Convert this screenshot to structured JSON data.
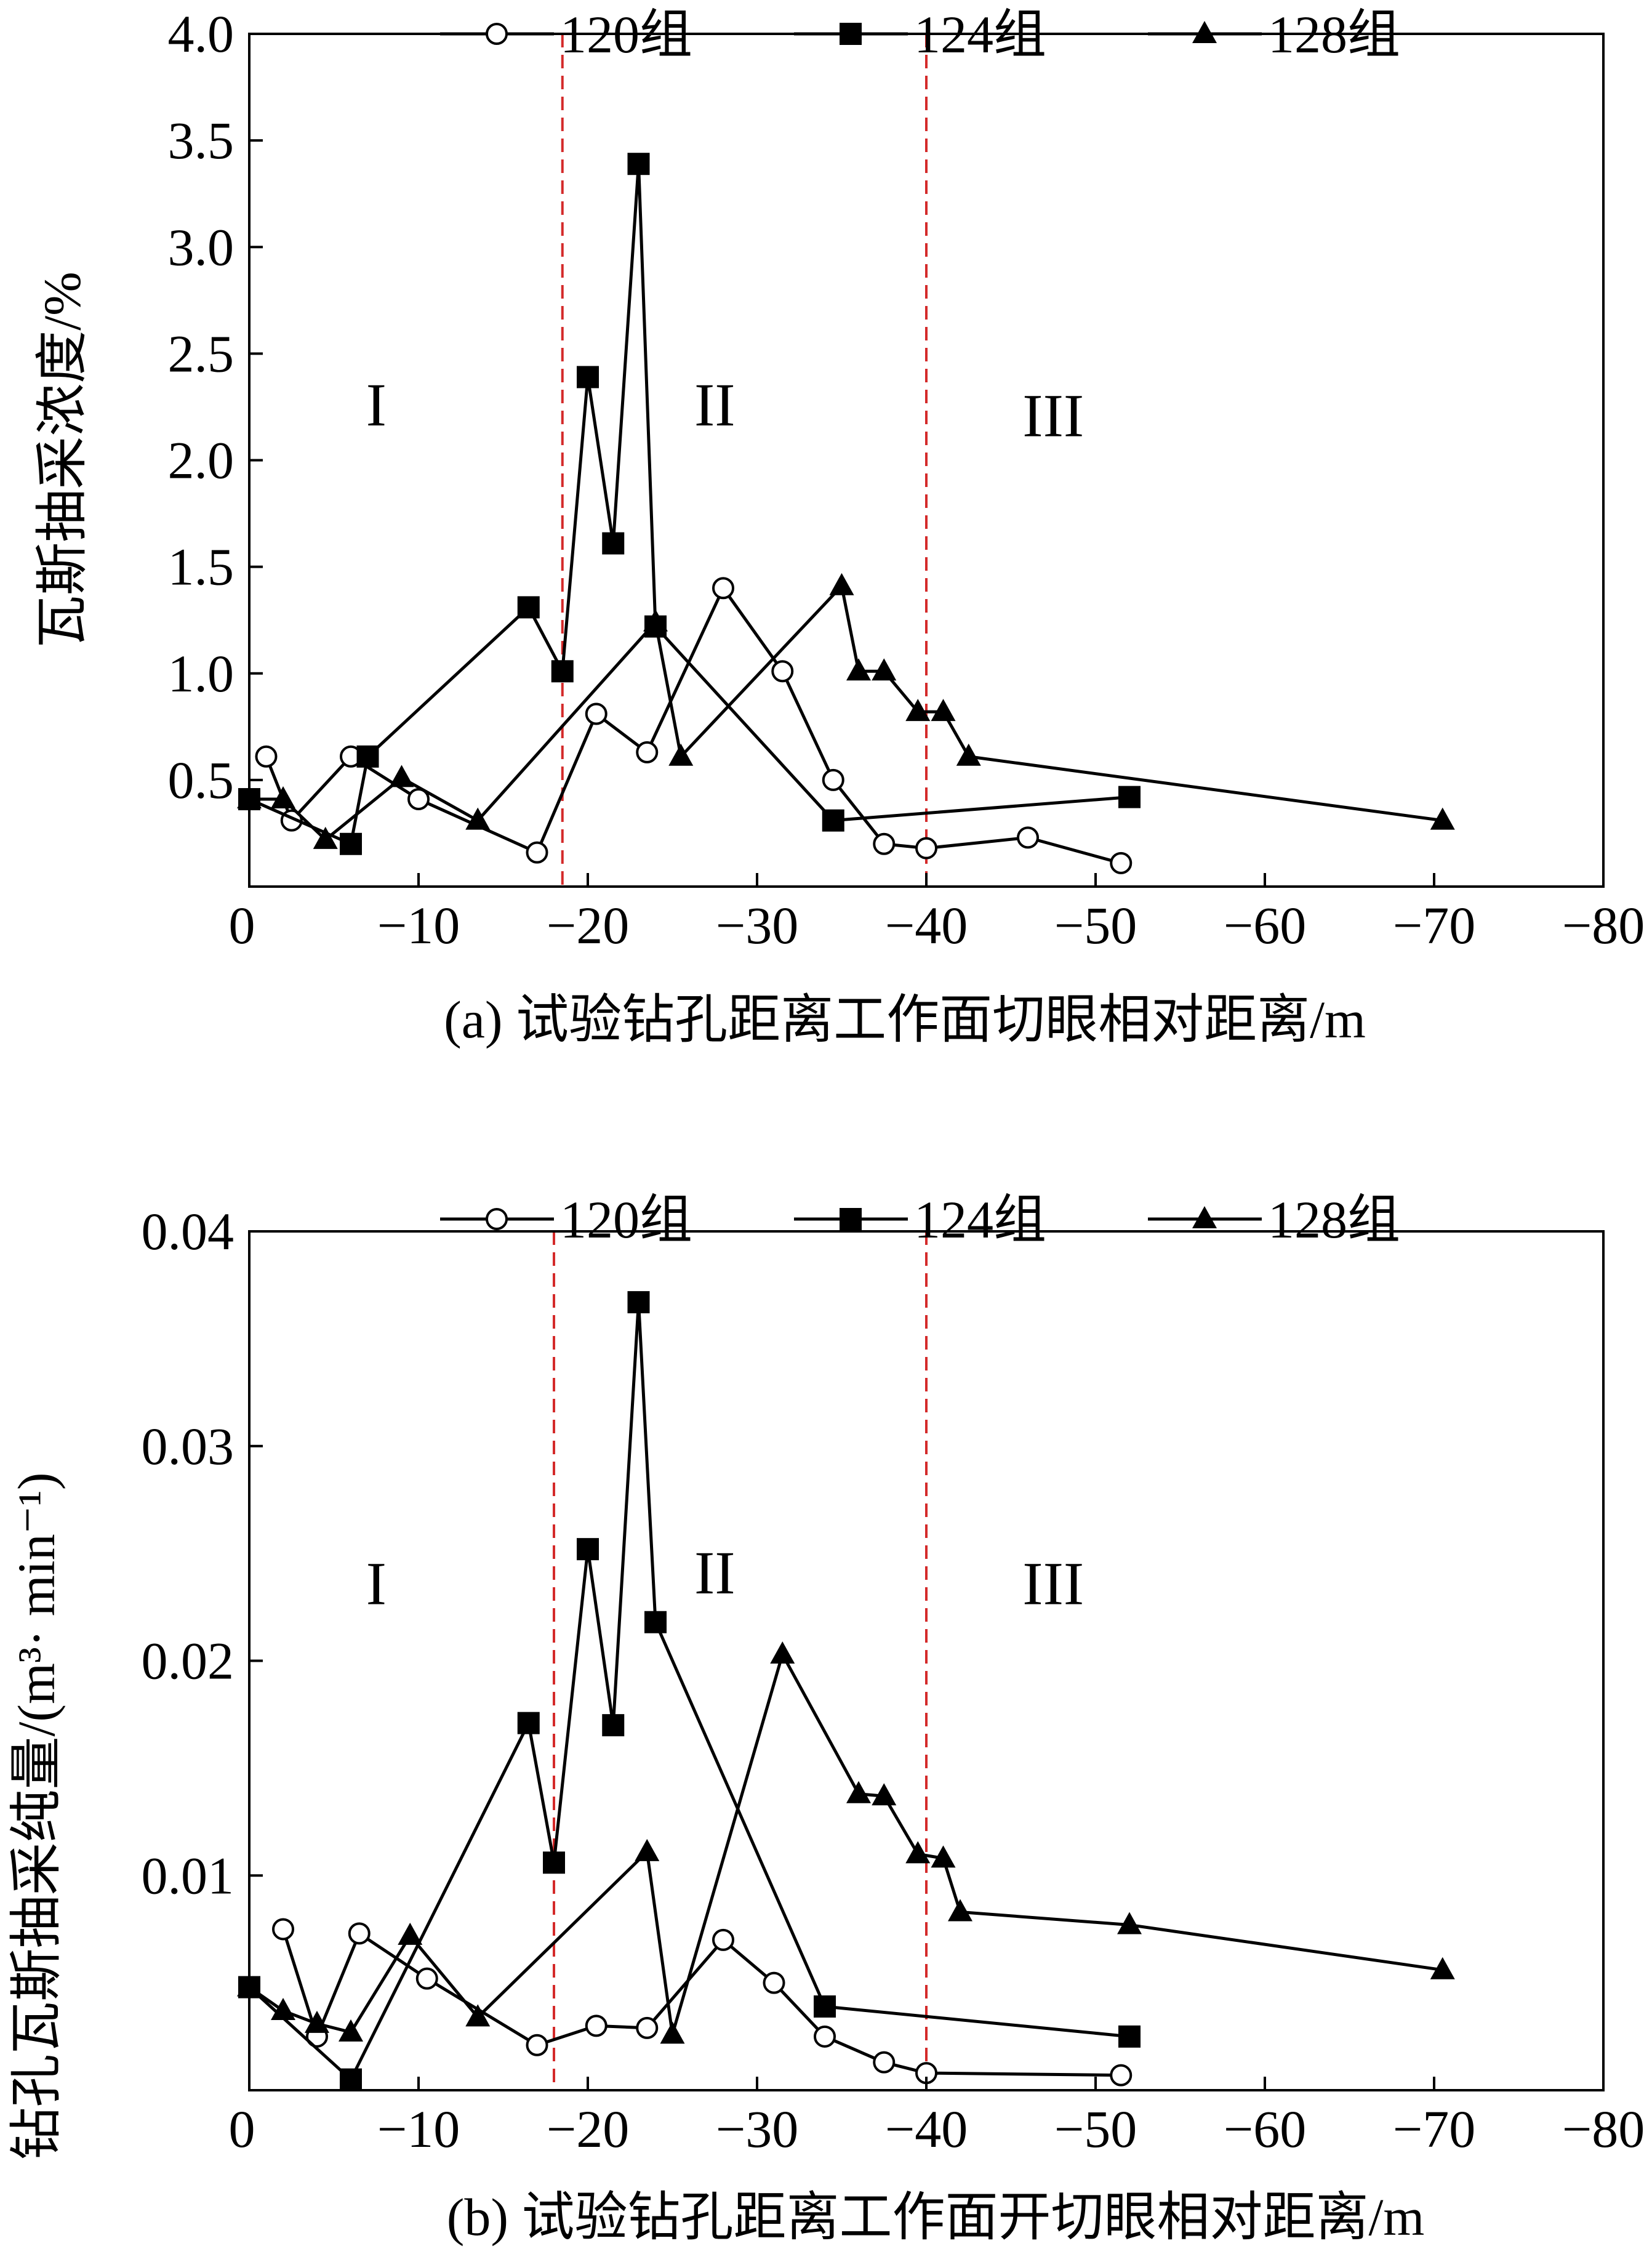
{
  "chart_data": [
    {
      "panel": "a",
      "type": "line",
      "caption": "(a) 试验钻孔距离工作面切眼相对距离/m",
      "ylabel": "瓦斯抽采浓度/%",
      "xlim": [
        0,
        -80
      ],
      "ylim": [
        0,
        4.0
      ],
      "xticks": [
        0,
        -10,
        -20,
        -30,
        -40,
        -50,
        -60,
        -70,
        -80
      ],
      "xtick_labels": [
        "0",
        "−10",
        "−20",
        "−30",
        "−40",
        "−50",
        "−60",
        "−70",
        "−80"
      ],
      "yticks": [
        0.5,
        1.0,
        1.5,
        2.0,
        2.5,
        3.0,
        3.5,
        4.0
      ],
      "ytick_labels": [
        "0.5",
        "1.0",
        "1.5",
        "2.0",
        "2.5",
        "3.0",
        "3.5",
        "4.0"
      ],
      "dividers": [
        -18.5,
        -40
      ],
      "region_labels": [
        {
          "text": "I",
          "x": -7.5,
          "y": 2.25
        },
        {
          "text": "II",
          "x": -27.5,
          "y": 2.25
        },
        {
          "text": "III",
          "x": -47.5,
          "y": 2.2
        }
      ],
      "series": [
        {
          "name": "120组",
          "marker": "open-circle",
          "x": [
            -1,
            -2.5,
            -6,
            -10,
            -17,
            -20.5,
            -23.5,
            -28,
            -31.5,
            -34.5,
            -37.5,
            -40,
            -46,
            -51.5
          ],
          "y": [
            0.61,
            0.31,
            0.61,
            0.41,
            0.16,
            0.81,
            0.63,
            1.4,
            1.01,
            0.5,
            0.2,
            0.18,
            0.23,
            0.11
          ]
        },
        {
          "name": "124组",
          "marker": "filled-square",
          "x": [
            0,
            -6,
            -7,
            -16.5,
            -18.5,
            -20,
            -21.5,
            -23,
            -24,
            -34.5,
            -52
          ],
          "y": [
            0.41,
            0.2,
            0.61,
            1.31,
            1.01,
            2.39,
            1.61,
            3.39,
            1.22,
            0.31,
            0.42
          ]
        },
        {
          "name": "128组",
          "marker": "filled-triangle",
          "x": [
            0,
            -2,
            -4.5,
            -9,
            -13.5,
            -24,
            -25.5,
            -35,
            -36,
            -37.5,
            -39.5,
            -41,
            -42.5,
            -70.5
          ],
          "y": [
            0.41,
            0.41,
            0.22,
            0.51,
            0.31,
            1.24,
            0.61,
            1.41,
            1.01,
            1.01,
            0.82,
            0.82,
            0.61,
            0.31
          ]
        }
      ]
    },
    {
      "panel": "b",
      "type": "line",
      "caption": "(b) 试验钻孔距离工作面开切眼相对距离/m",
      "ylabel": "钻孔瓦斯抽采纯量/(m³· min⁻¹)",
      "xlim": [
        0,
        -80
      ],
      "ylim": [
        0,
        0.04
      ],
      "xticks": [
        0,
        -10,
        -20,
        -30,
        -40,
        -50,
        -60,
        -70,
        -80
      ],
      "xtick_labels": [
        "0",
        "−10",
        "−20",
        "−30",
        "−40",
        "−50",
        "−60",
        "−70",
        "−80"
      ],
      "yticks": [
        0.01,
        0.02,
        0.03,
        0.04
      ],
      "ytick_labels": [
        "0.01",
        "0.02",
        "0.03",
        "0.04"
      ],
      "dividers": [
        -18,
        -40
      ],
      "region_labels": [
        {
          "text": "I",
          "x": -7.5,
          "y": 0.0235
        },
        {
          "text": "II",
          "x": -27.5,
          "y": 0.024
        },
        {
          "text": "III",
          "x": -47.5,
          "y": 0.0235
        }
      ],
      "series": [
        {
          "name": "120组",
          "marker": "open-circle",
          "x": [
            -2,
            -4,
            -6.5,
            -10.5,
            -17,
            -20.5,
            -23.5,
            -28,
            -31,
            -34,
            -37.5,
            -40,
            -51.5
          ],
          "y": [
            0.0075,
            0.0025,
            0.0073,
            0.0052,
            0.0021,
            0.003,
            0.0029,
            0.007,
            0.005,
            0.0025,
            0.0013,
            0.0008,
            0.0007
          ]
        },
        {
          "name": "124组",
          "marker": "filled-square",
          "x": [
            0,
            -6,
            -16.5,
            -18,
            -20,
            -21.5,
            -23,
            -24,
            -34,
            -52
          ],
          "y": [
            0.0048,
            0.0005,
            0.0171,
            0.0106,
            0.0252,
            0.017,
            0.0367,
            0.0218,
            0.0039,
            0.0025
          ]
        },
        {
          "name": "128组",
          "marker": "filled-triangle",
          "x": [
            0,
            -2,
            -4,
            -6,
            -9.5,
            -13.5,
            -23.5,
            -25,
            -31.5,
            -36,
            -37.5,
            -39.5,
            -41,
            -42,
            -52,
            -70.5
          ],
          "y": [
            0.0048,
            0.0037,
            0.0031,
            0.0027,
            0.0072,
            0.0034,
            0.0111,
            0.0026,
            0.0203,
            0.0138,
            0.0137,
            0.011,
            0.0108,
            0.0083,
            0.0077,
            0.0056
          ]
        }
      ]
    }
  ]
}
